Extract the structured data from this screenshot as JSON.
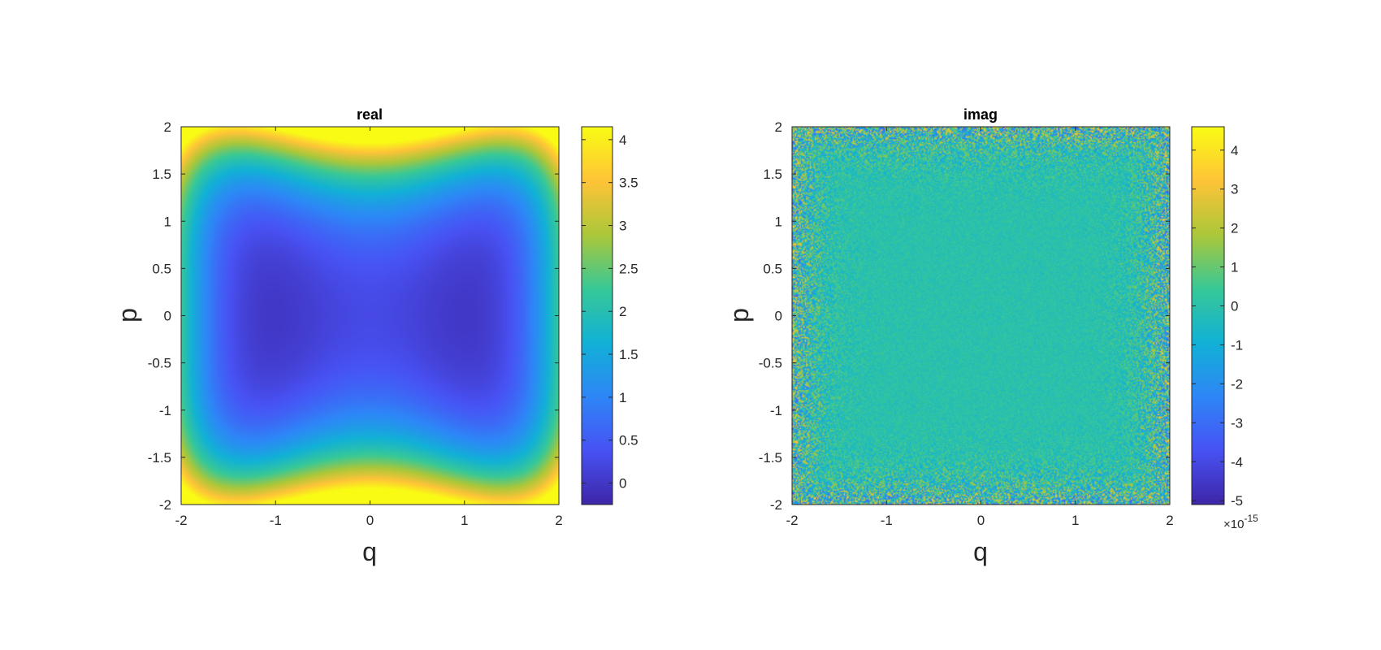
{
  "chart_data": [
    {
      "type": "heatmap",
      "title": "real",
      "xlabel": "q",
      "ylabel": "p",
      "xlim": [
        -2,
        2
      ],
      "ylim": [
        -2,
        2
      ],
      "xticks": [
        -2,
        -1,
        0,
        1,
        2
      ],
      "yticks": [
        -2,
        -1.5,
        -1,
        -0.5,
        0,
        0.5,
        1,
        1.5,
        2
      ],
      "colormap": "parula",
      "field": "smooth double-well: minima near (q=-1,p=0) and (q=1,p=0), approx 0.25*(q^2-1)^2 + 0.5*p^2 - 0.25*q^2*p^2 + 0.2*p^4 + 0.03*q^4*p^2",
      "colorbar": {
        "clim": [
          -0.25,
          4.15
        ],
        "ticks": [
          0,
          0.5,
          1,
          1.5,
          2,
          2.5,
          3,
          3.5,
          4
        ],
        "exponent": ""
      }
    },
    {
      "type": "heatmap",
      "title": "imag",
      "xlabel": "q",
      "ylabel": "p",
      "xlim": [
        -2,
        2
      ],
      "ylim": [
        -2,
        2
      ],
      "xticks": [
        -2,
        -1,
        0,
        1,
        2
      ],
      "yticks": [
        -2,
        -1.5,
        -1,
        -0.5,
        0,
        0.5,
        1,
        1.5,
        2
      ],
      "colormap": "parula",
      "field": "numerical noise around 0, amplitude growing toward the edges",
      "colorbar": {
        "clim": [
          -5.1,
          4.6
        ],
        "ticks": [
          -5,
          -4,
          -3,
          -2,
          -1,
          0,
          1,
          2,
          3,
          4
        ],
        "exponent": "×10",
        "exponent_power": "-15"
      }
    }
  ]
}
